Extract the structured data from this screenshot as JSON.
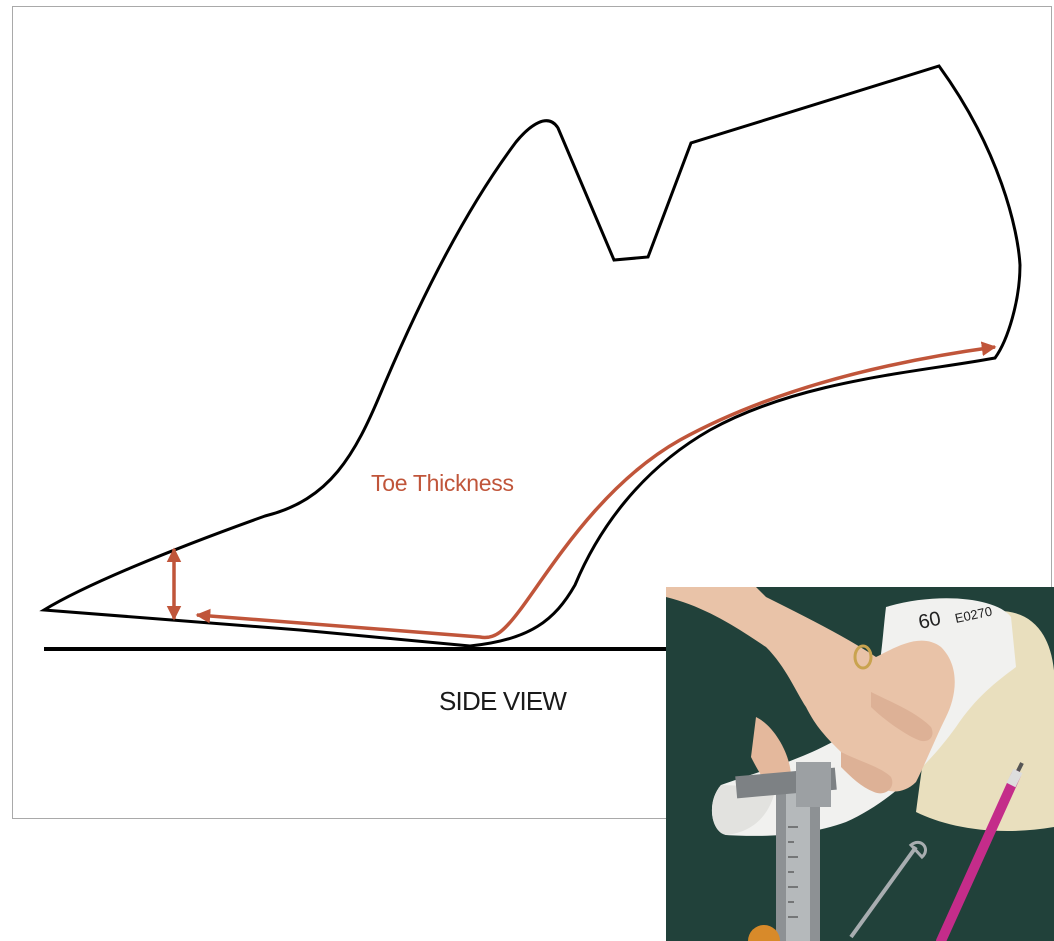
{
  "diagram": {
    "measure_label": "Toe Thickness",
    "view_label": "SIDE VIEW",
    "annotation_color": "#c0553a",
    "outline_color": "#000000"
  },
  "photo": {
    "subject": "hands measuring a white shoe last with a vernier caliper on a green cutting mat",
    "last_marking_size": "60",
    "last_marking_code": "E0270"
  }
}
